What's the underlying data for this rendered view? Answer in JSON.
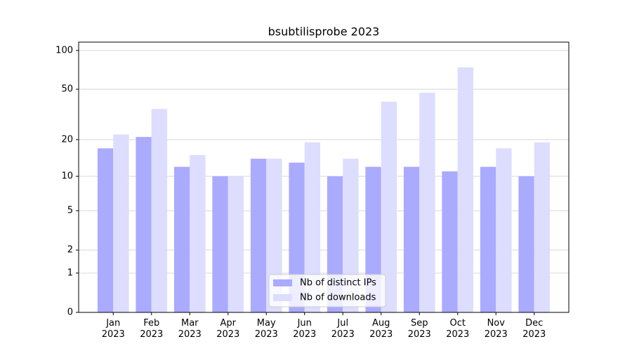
{
  "chart_data": {
    "type": "bar",
    "title": "bsubtilisprobe 2023",
    "categories": [
      "Jan\n2023",
      "Feb\n2023",
      "Mar\n2023",
      "Apr\n2023",
      "May\n2023",
      "Jun\n2023",
      "Jul\n2023",
      "Aug\n2023",
      "Sep\n2023",
      "Oct\n2023",
      "Nov\n2023",
      "Dec\n2023"
    ],
    "series": [
      {
        "name": "Nb of distinct IPs",
        "color": "#aaaaff",
        "values": [
          17,
          21,
          12,
          10,
          14,
          13,
          10,
          12,
          12,
          11,
          12,
          10
        ]
      },
      {
        "name": "Nb of downloads",
        "color": "#ddddff",
        "values": [
          22,
          35,
          15,
          10,
          14,
          19,
          14,
          40,
          47,
          74,
          17,
          19
        ]
      }
    ],
    "yscale": "log1p",
    "ylim": [
      0,
      116
    ],
    "yticks": [
      0,
      1,
      2,
      5,
      10,
      20,
      50,
      100
    ],
    "grid": true,
    "legend": "lower center"
  }
}
